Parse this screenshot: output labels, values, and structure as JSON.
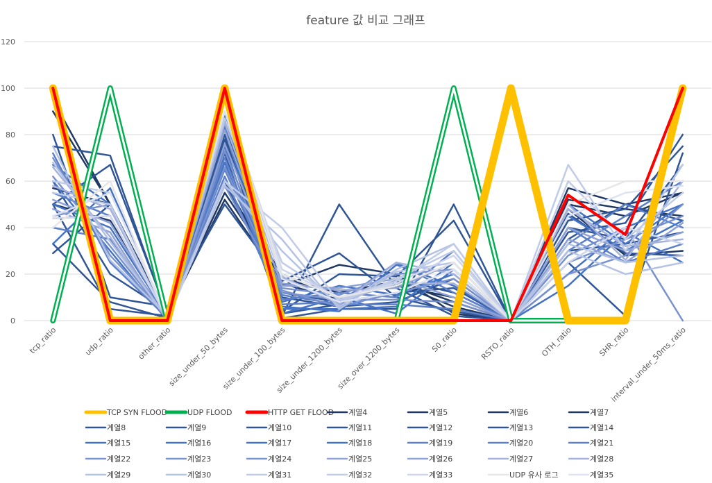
{
  "chart_data": {
    "type": "line",
    "title": "feature 값 비교 그래프",
    "xlabel": "",
    "ylabel": "",
    "ylim": [
      0,
      120
    ],
    "yticks": [
      0,
      20,
      40,
      60,
      80,
      100,
      120
    ],
    "grid": true,
    "legend_position": "bottom",
    "categories": [
      "tcp_ratio",
      "udp_ratio",
      "other_ratio",
      "size_under_50_bytes",
      "size_under_100_bytes",
      "size_under_1200_bytes",
      "size_over_1200_bytes",
      "S0_ratio",
      "RSTO_ratio",
      "OTH_ratio",
      "SHR_ratio",
      "interval_under_50ms_ratio"
    ],
    "series": [
      {
        "name": "TCP SYN FLOOD",
        "color": "#FFC000",
        "style": "thick",
        "values": [
          100,
          0,
          0,
          100,
          0,
          0,
          0,
          0,
          100,
          0,
          0,
          100
        ]
      },
      {
        "name": "UDP FLOOD",
        "color": "#00B050",
        "style": "double",
        "values": [
          0,
          100,
          0,
          100,
          0,
          0,
          0,
          100,
          0,
          0,
          0,
          100
        ]
      },
      {
        "name": "HTTP GET FLOOD",
        "color": "#FF0000",
        "style": "thick",
        "values": [
          100,
          0,
          0,
          100,
          0,
          0,
          0,
          0,
          0,
          54,
          37,
          100
        ]
      },
      {
        "name": "계열4",
        "color": "#203864",
        "values": [
          95,
          50,
          1,
          58,
          20,
          10,
          15,
          10,
          0,
          57,
          50,
          55
        ]
      },
      {
        "name": "계열5",
        "color": "#203864",
        "values": [
          90,
          50,
          2,
          55,
          18,
          12,
          17,
          8,
          0,
          52,
          48,
          45
        ]
      },
      {
        "name": "계열6",
        "color": "#203864",
        "values": [
          57,
          50,
          1,
          60,
          15,
          24,
          20,
          3,
          0,
          50,
          45,
          55
        ]
      },
      {
        "name": "계열7",
        "color": "#203864",
        "values": [
          50,
          43,
          3,
          52,
          16,
          9,
          16,
          6,
          0,
          48,
          28,
          30
        ]
      },
      {
        "name": "계열8",
        "color": "#2F5597",
        "values": [
          80,
          10,
          6,
          50,
          17,
          29,
          10,
          4,
          0,
          46,
          29,
          28
        ]
      },
      {
        "name": "계열9",
        "color": "#2F5597",
        "values": [
          60,
          20,
          4,
          72,
          2,
          50,
          14,
          2,
          0,
          40,
          35,
          67
        ]
      },
      {
        "name": "계열10",
        "color": "#2F5597",
        "values": [
          50,
          5,
          2,
          80,
          3,
          7,
          18,
          12,
          0,
          38,
          42,
          80
        ]
      },
      {
        "name": "계열11",
        "color": "#2F5597",
        "values": [
          33,
          8,
          1,
          84,
          4,
          20,
          19,
          43,
          0,
          43,
          48,
          75
        ]
      },
      {
        "name": "계열12",
        "color": "#2F5597",
        "values": [
          29,
          50,
          0,
          87,
          1,
          5,
          5,
          50,
          0,
          25,
          2,
          72
        ]
      },
      {
        "name": "계열13",
        "color": "#2F5597",
        "values": [
          75,
          71,
          2,
          60,
          12,
          8,
          12,
          14,
          0,
          35,
          50,
          43
        ]
      },
      {
        "name": "계열14",
        "color": "#2F5597",
        "values": [
          50,
          67,
          3,
          78,
          10,
          6,
          8,
          18,
          0,
          30,
          33,
          38
        ]
      },
      {
        "name": "계열15",
        "color": "#4472C4",
        "values": [
          67,
          50,
          0,
          83,
          3,
          10,
          3,
          22,
          0,
          20,
          40,
          50
        ]
      },
      {
        "name": "계열16",
        "color": "#4472C4",
        "values": [
          33,
          57,
          1,
          88,
          8,
          15,
          11,
          20,
          0,
          15,
          38,
          25
        ]
      },
      {
        "name": "계열17",
        "color": "#4472C4",
        "values": [
          50,
          40,
          2,
          75,
          5,
          5,
          6,
          25,
          0,
          50,
          33,
          50
        ]
      },
      {
        "name": "계열18",
        "color": "#4472C4",
        "values": [
          60,
          30,
          0,
          68,
          6,
          4,
          24,
          15,
          0,
          45,
          30,
          43
        ]
      },
      {
        "name": "계열19",
        "color": "#5B7FC9",
        "values": [
          72,
          25,
          1,
          62,
          7,
          8,
          25,
          12,
          0,
          40,
          25,
          33
        ]
      },
      {
        "name": "계열20",
        "color": "#5B7FC9",
        "values": [
          40,
          35,
          2,
          70,
          9,
          12,
          10,
          30,
          0,
          33,
          50,
          40
        ]
      },
      {
        "name": "계열21",
        "color": "#5B7FC9",
        "values": [
          55,
          45,
          1,
          65,
          11,
          7,
          7,
          5,
          0,
          30,
          45,
          60
        ]
      },
      {
        "name": "계열22",
        "color": "#7891CF",
        "values": [
          45,
          50,
          0,
          73,
          12,
          9,
          9,
          8,
          0,
          28,
          40,
          0
        ]
      },
      {
        "name": "계열23",
        "color": "#7891CF",
        "values": [
          70,
          28,
          2,
          58,
          13,
          6,
          12,
          18,
          0,
          25,
          35,
          45
        ]
      },
      {
        "name": "계열24",
        "color": "#7891CF",
        "values": [
          62,
          32,
          1,
          66,
          14,
          11,
          20,
          22,
          0,
          20,
          28,
          50
        ]
      },
      {
        "name": "계열25",
        "color": "#8FA2D5",
        "values": [
          48,
          38,
          0,
          76,
          16,
          13,
          14,
          25,
          0,
          35,
          25,
          42
        ]
      },
      {
        "name": "계열26",
        "color": "#8FA2D5",
        "values": [
          52,
          42,
          2,
          82,
          15,
          14,
          18,
          10,
          0,
          40,
          30,
          38
        ]
      },
      {
        "name": "계열27",
        "color": "#A5B3DC",
        "values": [
          58,
          48,
          1,
          85,
          18,
          8,
          16,
          16,
          0,
          48,
          32,
          35
        ]
      },
      {
        "name": "계열28",
        "color": "#A5B3DC",
        "values": [
          66,
          36,
          0,
          90,
          19,
          7,
          25,
          20,
          0,
          50,
          26,
          60
        ]
      },
      {
        "name": "계열29",
        "color": "#B4C2E4",
        "values": [
          75,
          26,
          2,
          60,
          30,
          6,
          22,
          33,
          0,
          30,
          20,
          25
        ]
      },
      {
        "name": "계열30",
        "color": "#B4C2E4",
        "values": [
          68,
          34,
          1,
          58,
          35,
          5,
          21,
          25,
          0,
          33,
          25,
          28
        ]
      },
      {
        "name": "계열31",
        "color": "#C0CBE8",
        "values": [
          55,
          50,
          0,
          60,
          40,
          8,
          18,
          30,
          0,
          67,
          30,
          67
        ]
      },
      {
        "name": "계열32",
        "color": "#C0CBE8",
        "values": [
          60,
          55,
          2,
          87,
          25,
          9,
          17,
          33,
          0,
          60,
          35,
          55
        ]
      },
      {
        "name": "계열33",
        "color": "#CDD6EC",
        "values": [
          44,
          45,
          1,
          95,
          22,
          10,
          16,
          28,
          0,
          25,
          40,
          33
        ]
      },
      {
        "name": "UDP 유사 로그",
        "color": "#E7E6E6",
        "values": [
          40,
          60,
          0,
          95,
          20,
          10,
          15,
          25,
          0,
          50,
          60,
          60
        ]
      },
      {
        "name": "계열35",
        "color": "#DDE3F1",
        "values": [
          45,
          55,
          1,
          90,
          18,
          8,
          12,
          22,
          0,
          45,
          55,
          58
        ]
      }
    ]
  }
}
